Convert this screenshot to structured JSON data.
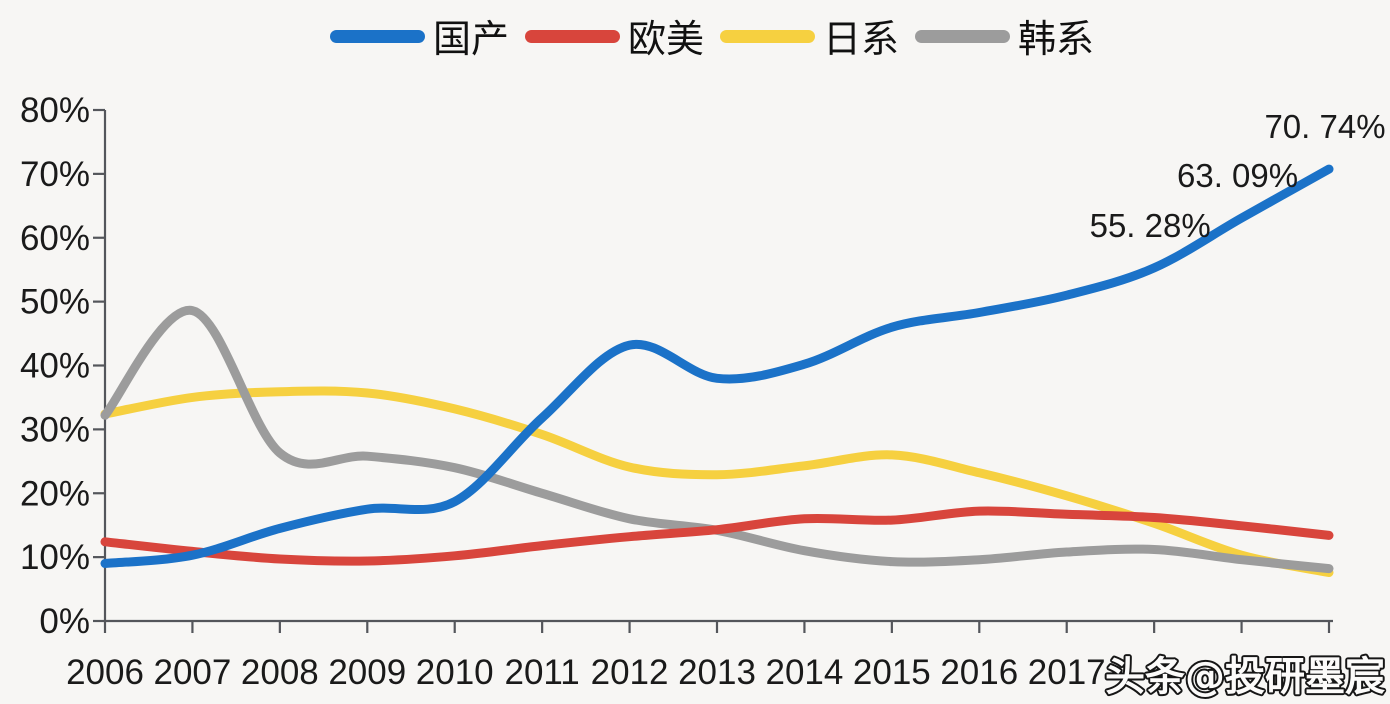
{
  "chart_data": {
    "type": "line",
    "title": "",
    "xlabel": "",
    "ylabel": "",
    "x": [
      2006,
      2007,
      2008,
      2009,
      2010,
      2011,
      2012,
      2013,
      2014,
      2015,
      2016,
      2017,
      2018,
      2019,
      2020
    ],
    "x_axis_visible_labels": [
      "2006",
      "2007",
      "2008",
      "2009",
      "2010",
      "2011",
      "2012",
      "2013",
      "2014",
      "2015",
      "2016",
      "2017"
    ],
    "y_tick_labels": [
      "0%",
      "10%",
      "20%",
      "30%",
      "40%",
      "50%",
      "60%",
      "70%",
      "80%"
    ],
    "ylim": [
      0,
      80
    ],
    "xlim": [
      2006,
      2020
    ],
    "grid": false,
    "legend_position": "top",
    "series": [
      {
        "name": "国产",
        "color": "#1B72C8",
        "values": [
          9.0,
          10.3,
          14.5,
          17.5,
          18.7,
          31.8,
          43.2,
          38.0,
          40.2,
          46.0,
          48.3,
          51.0,
          55.28,
          63.09,
          70.74
        ]
      },
      {
        "name": "欧美",
        "color": "#D8453C",
        "values": [
          12.4,
          10.9,
          9.7,
          9.4,
          10.2,
          11.8,
          13.2,
          14.3,
          16.0,
          15.8,
          17.2,
          16.7,
          16.2,
          14.9,
          13.4
        ]
      },
      {
        "name": "日系",
        "color": "#F6D040",
        "values": [
          32.4,
          35.0,
          35.9,
          35.7,
          33.2,
          29.2,
          24.1,
          22.9,
          24.3,
          26.0,
          23.2,
          19.6,
          15.3,
          10.3,
          7.6
        ]
      },
      {
        "name": "韩系",
        "color": "#9C9C9C",
        "values": [
          32.2,
          48.6,
          26.3,
          25.8,
          24.0,
          20.0,
          16.0,
          14.2,
          11.0,
          9.3,
          9.6,
          10.8,
          11.2,
          9.6,
          8.2
        ]
      }
    ],
    "point_labels": [
      {
        "series": "国产",
        "x": 2018,
        "text": "55. 28%"
      },
      {
        "series": "国产",
        "x": 2019,
        "text": "63. 09%"
      },
      {
        "series": "国产",
        "x": 2020,
        "text": "70. 74%"
      }
    ]
  },
  "watermark": {
    "text": "头条@投研墨宸"
  },
  "colors": {
    "background": "#F7F6F4",
    "axis": "#54565B",
    "text": "#1A1A1A",
    "watermark_fill": "#FCFBFA",
    "watermark_stroke": "#161616"
  }
}
